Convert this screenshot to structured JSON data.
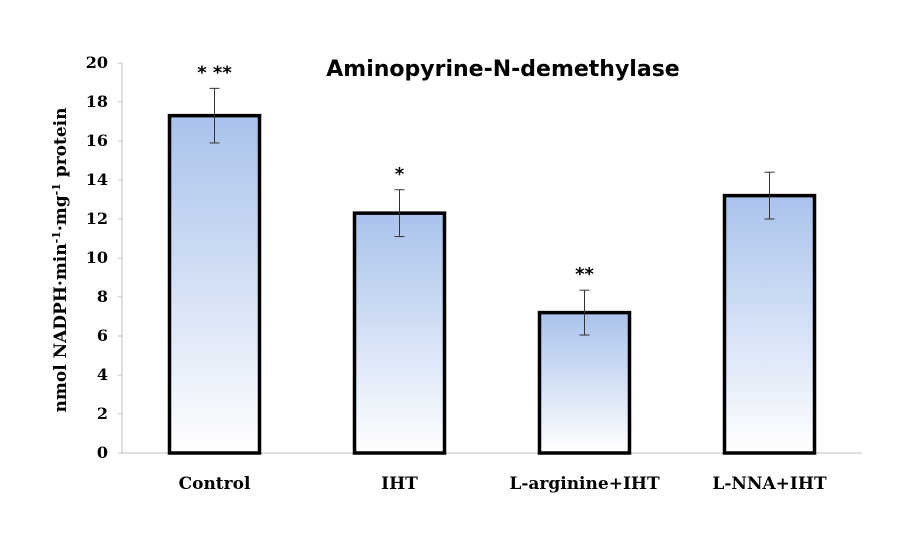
{
  "chart_data": {
    "type": "bar",
    "title": "Aminopyrine-N-demethylase",
    "ylabel_parts": [
      "nmol NADPH·min",
      "-1",
      "·mg",
      "-1",
      " protein"
    ],
    "categories": [
      "Control",
      "IHT",
      "L-arginine+IHT",
      "L-NNA+IHT"
    ],
    "values": [
      17.3,
      12.3,
      7.2,
      13.2
    ],
    "errors": [
      1.4,
      1.2,
      1.15,
      1.2
    ],
    "significance": [
      "* **",
      "*",
      "**",
      ""
    ],
    "ylim": [
      0,
      20
    ],
    "yticks": [
      "0",
      "2",
      "4",
      "6",
      "8",
      "10",
      "12",
      "14",
      "16",
      "18",
      "20"
    ],
    "grid": false,
    "legend": "none",
    "colors": {
      "bar_top": "#a9c2ec",
      "bar_bottom": "#ffffff",
      "bar_border": "#000000"
    }
  }
}
